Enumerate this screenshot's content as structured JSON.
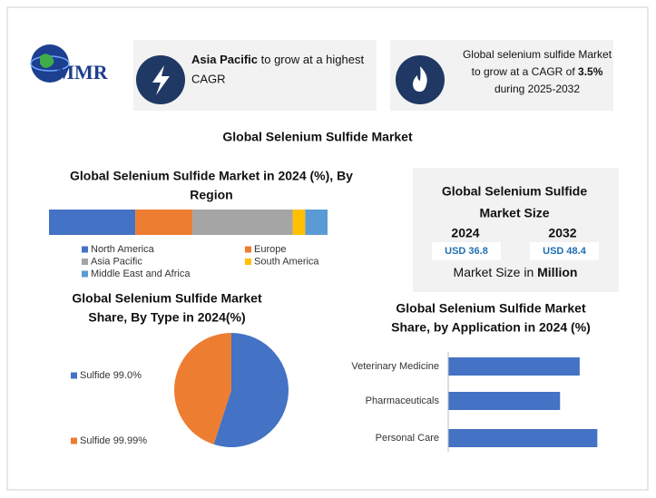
{
  "logo": {
    "text": "MMR"
  },
  "cards": [
    {
      "highlight": "Asia Pacific",
      "text_1": "to grow at a highest",
      "text_2": "CAGR"
    },
    {
      "text_1": "Global selenium sulfide Market",
      "text_2": "to grow at a CAGR of",
      "highlight": "3.5%",
      "text_3": "during 2025-2032"
    }
  ],
  "main_title": "Global Selenium Sulfide Market",
  "market_size": {
    "title_lines": [
      "Global Selenium Sulfide",
      "Market Size"
    ],
    "years": [
      "2024",
      "2032"
    ],
    "values": [
      "USD 36.8",
      "USD 48.4"
    ],
    "unit_text": "Market Size in",
    "unit_highlight": "Million"
  },
  "chart_data": [
    {
      "type": "stacked_bar",
      "title": [
        "Global Selenium Sulfide Market in 2024 (%), By",
        "Region"
      ],
      "xlim": [
        0,
        100
      ],
      "series": [
        {
          "name": "North America",
          "color": "#4472c4",
          "values": [
            31
          ]
        },
        {
          "name": "Europe",
          "color": "#ed7d31",
          "values": [
            20.5
          ]
        },
        {
          "name": "Asia Pacific",
          "color": "#a5a5a5",
          "values": [
            36
          ]
        },
        {
          "name": "South America",
          "color": "#ffc000",
          "values": [
            4.5
          ]
        },
        {
          "name": "Middle East and Africa",
          "color": "#5b9bd5",
          "values": [
            8
          ]
        }
      ]
    },
    {
      "type": "pie",
      "title": [
        "Global Selenium Sulfide Market",
        "Share, By Type in 2024(%)"
      ],
      "categories": [
        "Sulfide 99.0%",
        "Sulfide 99.99%"
      ],
      "values": [
        55,
        45
      ],
      "colors": [
        "#4472c4",
        "#ed7d31"
      ]
    },
    {
      "type": "hbar",
      "title": [
        "Global Selenium Sulfide Market",
        "Share, by Application in 2024 (%)"
      ],
      "categories": [
        "Veterinary Medicine",
        "Pharmaceuticals",
        "Personal Care"
      ],
      "values": [
        33.5,
        28.5,
        38
      ],
      "color": "#4472c4",
      "xlim": [
        0,
        40
      ]
    }
  ]
}
